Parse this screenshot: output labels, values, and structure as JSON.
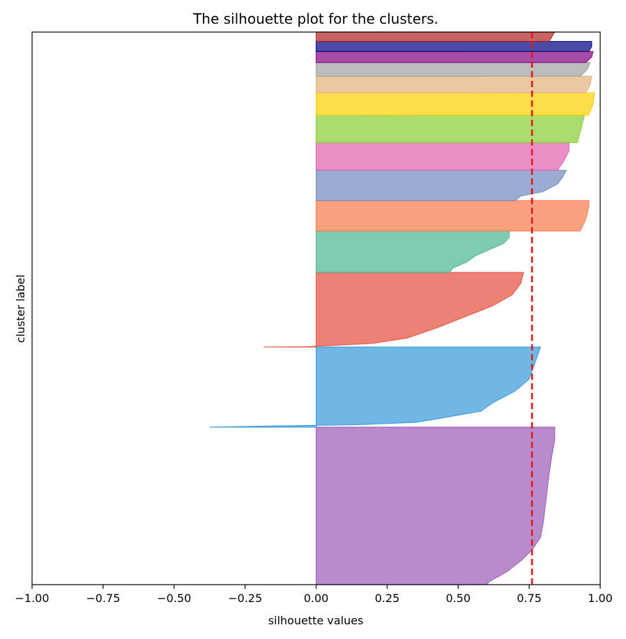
{
  "chart_data": {
    "type": "silhouette",
    "title": "The silhouette plot for the clusters.",
    "xlabel": "silhouette values",
    "ylabel": "cluster label",
    "xlim": [
      -1.0,
      1.0
    ],
    "ylim": [
      0,
      100
    ],
    "xticks": [
      "−1.00",
      "−0.75",
      "−0.50",
      "−0.25",
      "0.00",
      "0.25",
      "0.50",
      "0.75",
      "1.00"
    ],
    "xtick_values": [
      -1.0,
      -0.75,
      -0.5,
      -0.25,
      0.0,
      0.25,
      0.5,
      0.75,
      1.0
    ],
    "yticks": [],
    "average_silhouette": 0.76,
    "average_line_color": "#e31a1c",
    "clusters": [
      {
        "color": "#9b59b6",
        "y0": 0.0,
        "y1": 28.5,
        "profile": [
          [
            0,
            0.6
          ],
          [
            0.02,
            0.61
          ],
          [
            0.08,
            0.67
          ],
          [
            0.15,
            0.72
          ],
          [
            0.22,
            0.76
          ],
          [
            0.3,
            0.79
          ],
          [
            0.4,
            0.8
          ],
          [
            0.55,
            0.81
          ],
          [
            0.7,
            0.82
          ],
          [
            0.82,
            0.83
          ],
          [
            0.92,
            0.84
          ],
          [
            1.0,
            0.84
          ]
        ]
      },
      {
        "color": "#3498db",
        "y0": 28.5,
        "y1": 43.0,
        "profile": [
          [
            0,
            -0.375
          ],
          [
            0.01,
            -0.22
          ],
          [
            0.03,
            0.14
          ],
          [
            0.06,
            0.35
          ],
          [
            0.1,
            0.42
          ],
          [
            0.2,
            0.58
          ],
          [
            0.3,
            0.62
          ],
          [
            0.45,
            0.7
          ],
          [
            0.6,
            0.75
          ],
          [
            0.7,
            0.76
          ],
          [
            0.8,
            0.77
          ],
          [
            1.0,
            0.79
          ]
        ]
      },
      {
        "color": "#e74c3c",
        "y0": 43.0,
        "y1": 56.5,
        "profile": [
          [
            0,
            -0.185
          ],
          [
            0.005,
            -0.03
          ],
          [
            0.02,
            0.05
          ],
          [
            0.05,
            0.2
          ],
          [
            0.12,
            0.32
          ],
          [
            0.25,
            0.42
          ],
          [
            0.4,
            0.52
          ],
          [
            0.55,
            0.62
          ],
          [
            0.7,
            0.69
          ],
          [
            0.85,
            0.72
          ],
          [
            1.0,
            0.73
          ]
        ]
      },
      {
        "color": "#48b592",
        "y0": 56.5,
        "y1": 64.0,
        "profile": [
          [
            0,
            0.47
          ],
          [
            0.1,
            0.48
          ],
          [
            0.25,
            0.53
          ],
          [
            0.4,
            0.56
          ],
          [
            0.55,
            0.61
          ],
          [
            0.7,
            0.66
          ],
          [
            0.85,
            0.68
          ],
          [
            1.0,
            0.68
          ]
        ]
      },
      {
        "color": "#fc7a4a",
        "y0": 64.0,
        "y1": 69.5,
        "profile": [
          [
            0,
            0.93
          ],
          [
            0.4,
            0.95
          ],
          [
            0.8,
            0.96
          ],
          [
            1.0,
            0.96
          ]
        ]
      },
      {
        "color": "#7189bf",
        "y0": 69.5,
        "y1": 75.0,
        "profile": [
          [
            0,
            0.7
          ],
          [
            0.15,
            0.72
          ],
          [
            0.3,
            0.8
          ],
          [
            0.55,
            0.85
          ],
          [
            0.8,
            0.87
          ],
          [
            1.0,
            0.88
          ]
        ]
      },
      {
        "color": "#e05eae",
        "y0": 75.0,
        "y1": 80.0,
        "profile": [
          [
            0,
            0.85
          ],
          [
            0.3,
            0.87
          ],
          [
            0.7,
            0.89
          ],
          [
            1.0,
            0.89
          ]
        ]
      },
      {
        "color": "#86cc2e",
        "y0": 80.0,
        "y1": 85.0,
        "profile": [
          [
            0,
            0.92
          ],
          [
            0.4,
            0.93
          ],
          [
            0.8,
            0.94
          ],
          [
            1.0,
            0.945
          ]
        ]
      },
      {
        "color": "#ffd000",
        "y0": 85.0,
        "y1": 89.0,
        "profile": [
          [
            0,
            0.96
          ],
          [
            0.5,
            0.975
          ],
          [
            1.0,
            0.98
          ]
        ]
      },
      {
        "color": "#e0b07a",
        "y0": 89.0,
        "y1": 92.0,
        "profile": [
          [
            0,
            0.95
          ],
          [
            0.5,
            0.965
          ],
          [
            1.0,
            0.97
          ]
        ]
      },
      {
        "color": "#a0a0a0",
        "y0": 92.0,
        "y1": 94.5,
        "profile": [
          [
            0,
            0.93
          ],
          [
            0.5,
            0.955
          ],
          [
            1.0,
            0.965
          ]
        ]
      },
      {
        "color": "#800080",
        "y0": 94.5,
        "y1": 96.5,
        "profile": [
          [
            0,
            0.95
          ],
          [
            0.5,
            0.97
          ],
          [
            1.0,
            0.975
          ]
        ]
      },
      {
        "color": "#000080",
        "y0": 96.5,
        "y1": 98.3,
        "profile": [
          [
            0,
            0.96
          ],
          [
            0.5,
            0.97
          ],
          [
            1.0,
            0.97
          ]
        ]
      },
      {
        "color": "#b22222",
        "y0": 98.3,
        "y1": 100.0,
        "profile": [
          [
            0,
            0.82
          ],
          [
            0.5,
            0.83
          ],
          [
            1.0,
            0.84
          ]
        ]
      }
    ]
  }
}
